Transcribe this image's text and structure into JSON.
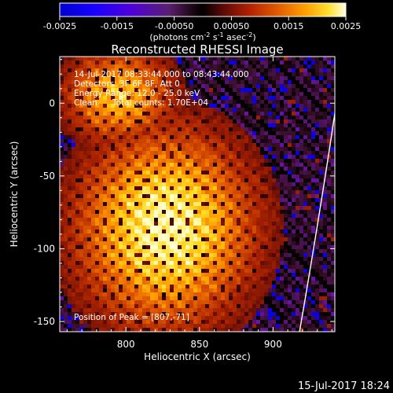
{
  "chart_data": {
    "type": "heatmap",
    "title": "Reconstructed RHESSI Image",
    "xlabel": "Heliocentric X (arcsec)",
    "ylabel": "Heliocentric Y (arcsec)",
    "xlim": [
      755,
      942
    ],
    "ylim": [
      -157,
      32
    ],
    "x_ticks": [
      800,
      850,
      900
    ],
    "y_ticks": [
      0,
      -50,
      -100,
      -150
    ],
    "colorbar": {
      "range": [
        -0.0025,
        0.0025
      ],
      "tick_labels": [
        "-0.0025",
        "-0.0015",
        "-0.00050",
        "0.00050",
        "0.0015",
        "0.0025"
      ],
      "tick_values": [
        -0.0025,
        -0.0015,
        -0.0005,
        0.0005,
        0.0015,
        0.0025
      ],
      "unit_label_parts": [
        "(photons cm",
        "-2",
        " s",
        "-1",
        " asec",
        "-2",
        ")"
      ]
    },
    "annotations": {
      "time_range": "14-Jul-2017 08:33:44.000 to 08:43:44.000",
      "detectors": "Detectors: 3F 6F 8F, Att 0",
      "energy": "Energy Range: 12.0 - 25.0 keV",
      "clean": "Clean",
      "total_counts": "Total counts: 1.70E+04",
      "peak": "Position of Peak = [807,-71]"
    },
    "peak_position": [
      807,
      -71
    ],
    "limb_arc": [
      [
        942,
        -7
      ],
      [
        932,
        -75
      ],
      [
        918,
        -157
      ]
    ]
  },
  "footer": {
    "date": "15-Jul-2017 18:24"
  },
  "colors": {
    "background": "#000000",
    "text": "#ffffff",
    "colormap": [
      "#0000d0",
      "#1c00ff",
      "#4a00c8",
      "#6a14a8",
      "#3c102c",
      "#000000",
      "#5a0a0a",
      "#aa2200",
      "#dd5500",
      "#ff9a00",
      "#ffdd22",
      "#ffffd0"
    ]
  }
}
